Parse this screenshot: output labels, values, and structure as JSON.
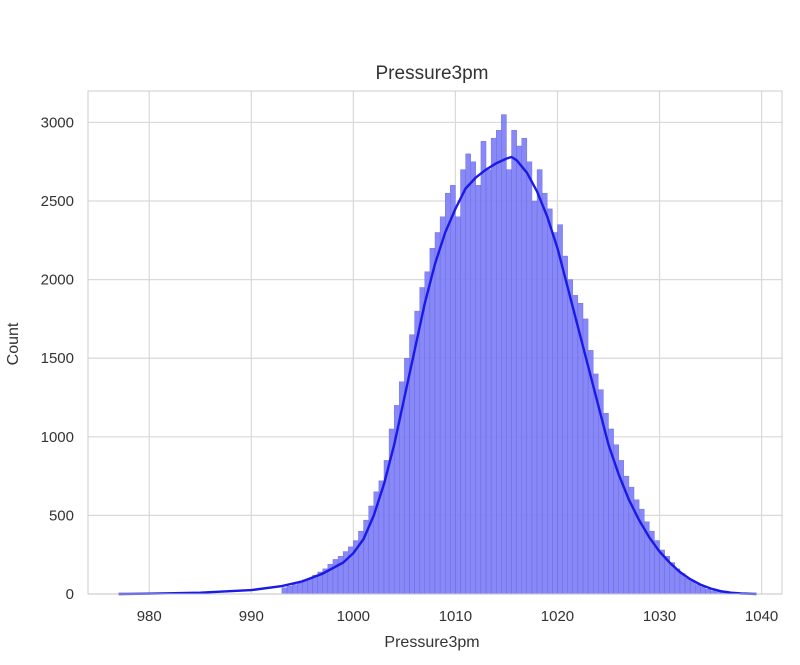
{
  "chart_data": {
    "type": "bar",
    "title": "Pressure3pm",
    "xlabel": "Pressure3pm",
    "ylabel": "Count",
    "xlim": [
      974,
      1042
    ],
    "ylim": [
      0,
      3200
    ],
    "x_ticks": [
      980,
      990,
      1000,
      1010,
      1020,
      1030,
      1040
    ],
    "y_ticks": [
      0,
      500,
      1000,
      1500,
      2000,
      2500,
      3000
    ],
    "grid": true,
    "bin_width": 0.5,
    "colors": {
      "bars": "#7b7bf5",
      "bar_edge": "#6666e8",
      "kde": "#1a1ae6",
      "grid": "#d9d9d9"
    },
    "histogram": {
      "x": [
        993.0,
        993.5,
        994.0,
        994.5,
        995.0,
        995.5,
        996.0,
        996.5,
        997.0,
        997.5,
        998.0,
        998.5,
        999.0,
        999.5,
        1000.0,
        1000.5,
        1001.0,
        1001.5,
        1002.0,
        1002.5,
        1003.0,
        1003.5,
        1004.0,
        1004.5,
        1005.0,
        1005.5,
        1006.0,
        1006.5,
        1007.0,
        1007.5,
        1008.0,
        1008.5,
        1009.0,
        1009.5,
        1010.0,
        1010.5,
        1011.0,
        1011.5,
        1012.0,
        1012.5,
        1013.0,
        1013.5,
        1014.0,
        1014.5,
        1015.0,
        1015.5,
        1016.0,
        1016.5,
        1017.0,
        1017.5,
        1018.0,
        1018.5,
        1019.0,
        1019.5,
        1020.0,
        1020.5,
        1021.0,
        1021.5,
        1022.0,
        1022.5,
        1023.0,
        1023.5,
        1024.0,
        1024.5,
        1025.0,
        1025.5,
        1026.0,
        1026.5,
        1027.0,
        1027.5,
        1028.0,
        1028.5,
        1029.0,
        1029.5,
        1030.0,
        1030.5,
        1031.0,
        1031.5,
        1032.0,
        1032.5,
        1033.0,
        1033.5,
        1034.0,
        1034.5,
        1035.0,
        1035.5,
        1036.0,
        1036.5,
        1037.0
      ],
      "counts": [
        40,
        50,
        60,
        70,
        90,
        100,
        120,
        140,
        160,
        190,
        220,
        240,
        270,
        300,
        340,
        400,
        470,
        560,
        650,
        720,
        850,
        1050,
        1200,
        1350,
        1500,
        1650,
        1800,
        1950,
        2050,
        2200,
        2300,
        2400,
        2550,
        2600,
        2400,
        2700,
        2800,
        2750,
        2600,
        2880,
        2700,
        2900,
        2950,
        3050,
        2700,
        2950,
        2850,
        2900,
        2750,
        2500,
        2700,
        2550,
        2450,
        2300,
        2350,
        2150,
        2000,
        1900,
        1850,
        1750,
        1550,
        1400,
        1300,
        1150,
        1050,
        950,
        850,
        750,
        680,
        600,
        540,
        460,
        400,
        340,
        280,
        240,
        200,
        160,
        130,
        100,
        80,
        60,
        45,
        30,
        20,
        15,
        10,
        6,
        3
      ]
    },
    "kde": {
      "x": [
        977,
        980,
        985,
        990,
        993,
        995,
        997,
        999,
        1000,
        1001,
        1002,
        1003,
        1004,
        1005,
        1006,
        1007,
        1008,
        1009,
        1010,
        1011,
        1012,
        1013,
        1014,
        1015,
        1015.5,
        1016,
        1017,
        1018,
        1019,
        1020,
        1021,
        1022,
        1023,
        1024,
        1025,
        1026,
        1027,
        1028,
        1029,
        1030,
        1031,
        1032,
        1033,
        1034,
        1035,
        1036,
        1037,
        1038,
        1039,
        1039.5
      ],
      "y": [
        0,
        2,
        8,
        25,
        50,
        80,
        130,
        200,
        260,
        350,
        500,
        700,
        950,
        1250,
        1550,
        1850,
        2100,
        2300,
        2450,
        2580,
        2650,
        2700,
        2740,
        2770,
        2780,
        2760,
        2680,
        2560,
        2400,
        2200,
        1950,
        1700,
        1450,
        1200,
        950,
        760,
        600,
        470,
        360,
        270,
        200,
        140,
        95,
        60,
        35,
        18,
        8,
        3,
        1,
        0
      ]
    }
  }
}
